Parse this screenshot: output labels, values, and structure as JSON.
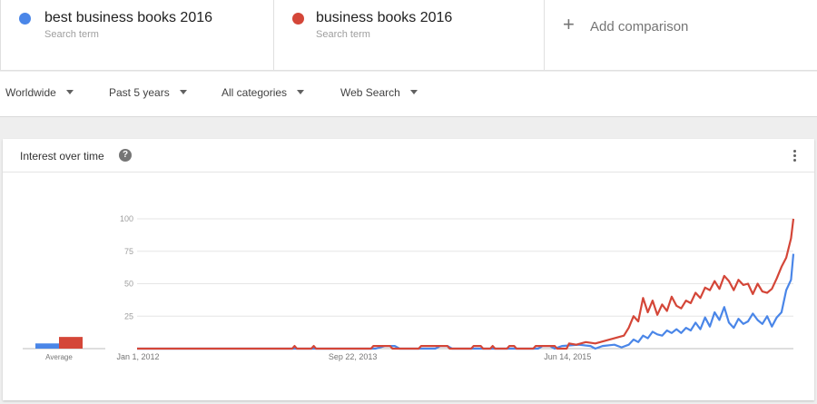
{
  "terms": [
    {
      "name": "best business books 2016",
      "sub": "Search term",
      "color": "#4a86e8"
    },
    {
      "name": "business books 2016",
      "sub": "Search term",
      "color": "#d44638"
    }
  ],
  "add": {
    "label": "Add comparison",
    "icon": "plus-icon"
  },
  "filters": [
    "Worldwide",
    "Past 5 years",
    "All categories",
    "Web Search"
  ],
  "card": {
    "title": "Interest over time",
    "help_icon": "?"
  },
  "chart_data": {
    "type": "line",
    "title": "Interest over time",
    "xlabel": "",
    "ylabel": "",
    "ylim": [
      0,
      100
    ],
    "yticks": [
      25,
      50,
      75,
      100
    ],
    "xticks": [
      {
        "label": "Jan 1, 2012",
        "week": 0
      },
      {
        "label": "Sep 22, 2013",
        "week": 90
      },
      {
        "label": "Jun 14, 2015",
        "week": 180
      }
    ],
    "num_weeks": 249,
    "averages": {
      "label": "Average",
      "values": [
        4,
        9
      ]
    },
    "grid": true,
    "legend": "top",
    "series": [
      {
        "name": "best business books 2016",
        "color": "#4a86e8",
        "points": [
          [
            0,
            0
          ],
          [
            100,
            0
          ],
          [
            104,
            2
          ],
          [
            108,
            2
          ],
          [
            110,
            0
          ],
          [
            125,
            0
          ],
          [
            127,
            2
          ],
          [
            130,
            2
          ],
          [
            132,
            0
          ],
          [
            168,
            0
          ],
          [
            170,
            2
          ],
          [
            173,
            2
          ],
          [
            175,
            0
          ],
          [
            178,
            2
          ],
          [
            185,
            3
          ],
          [
            190,
            2
          ],
          [
            192,
            0
          ],
          [
            195,
            2
          ],
          [
            200,
            3
          ],
          [
            203,
            1
          ],
          [
            206,
            3
          ],
          [
            208,
            7
          ],
          [
            210,
            5
          ],
          [
            212,
            10
          ],
          [
            214,
            8
          ],
          [
            216,
            13
          ],
          [
            218,
            11
          ],
          [
            220,
            10
          ],
          [
            222,
            14
          ],
          [
            224,
            12
          ],
          [
            226,
            15
          ],
          [
            228,
            12
          ],
          [
            230,
            16
          ],
          [
            232,
            14
          ],
          [
            234,
            20
          ],
          [
            236,
            15
          ],
          [
            238,
            24
          ],
          [
            240,
            17
          ],
          [
            242,
            28
          ],
          [
            244,
            22
          ],
          [
            246,
            32
          ],
          [
            248,
            20
          ],
          [
            250,
            16
          ],
          [
            252,
            23
          ],
          [
            254,
            19
          ],
          [
            256,
            21
          ],
          [
            258,
            27
          ],
          [
            260,
            22
          ],
          [
            262,
            19
          ],
          [
            264,
            25
          ],
          [
            266,
            17
          ],
          [
            268,
            24
          ],
          [
            270,
            28
          ],
          [
            272,
            45
          ],
          [
            274,
            53
          ],
          [
            275,
            73
          ]
        ]
      },
      {
        "name": "business books 2016",
        "color": "#d44638",
        "points": [
          [
            0,
            0
          ],
          [
            65,
            0
          ],
          [
            66,
            2
          ],
          [
            67,
            0
          ],
          [
            73,
            0
          ],
          [
            74,
            2
          ],
          [
            75,
            0
          ],
          [
            98,
            0
          ],
          [
            99,
            2
          ],
          [
            106,
            2
          ],
          [
            107,
            0
          ],
          [
            118,
            0
          ],
          [
            119,
            2
          ],
          [
            130,
            2
          ],
          [
            131,
            0
          ],
          [
            140,
            0
          ],
          [
            141,
            2
          ],
          [
            144,
            2
          ],
          [
            145,
            0
          ],
          [
            148,
            0
          ],
          [
            149,
            2
          ],
          [
            150,
            0
          ],
          [
            155,
            0
          ],
          [
            156,
            2
          ],
          [
            158,
            2
          ],
          [
            159,
            0
          ],
          [
            166,
            0
          ],
          [
            167,
            2
          ],
          [
            175,
            2
          ],
          [
            176,
            0
          ],
          [
            180,
            0
          ],
          [
            181,
            4
          ],
          [
            184,
            3
          ],
          [
            188,
            5
          ],
          [
            192,
            4
          ],
          [
            196,
            6
          ],
          [
            200,
            8
          ],
          [
            204,
            10
          ],
          [
            206,
            16
          ],
          [
            208,
            25
          ],
          [
            210,
            21
          ],
          [
            212,
            39
          ],
          [
            214,
            28
          ],
          [
            216,
            37
          ],
          [
            218,
            26
          ],
          [
            220,
            34
          ],
          [
            222,
            29
          ],
          [
            224,
            40
          ],
          [
            226,
            33
          ],
          [
            228,
            31
          ],
          [
            230,
            37
          ],
          [
            232,
            35
          ],
          [
            234,
            43
          ],
          [
            236,
            39
          ],
          [
            238,
            47
          ],
          [
            240,
            45
          ],
          [
            242,
            52
          ],
          [
            244,
            46
          ],
          [
            246,
            56
          ],
          [
            248,
            52
          ],
          [
            250,
            45
          ],
          [
            252,
            53
          ],
          [
            254,
            49
          ],
          [
            256,
            50
          ],
          [
            258,
            42
          ],
          [
            260,
            50
          ],
          [
            262,
            44
          ],
          [
            264,
            43
          ],
          [
            266,
            46
          ],
          [
            268,
            54
          ],
          [
            270,
            63
          ],
          [
            272,
            70
          ],
          [
            274,
            85
          ],
          [
            275,
            100
          ]
        ]
      }
    ]
  }
}
